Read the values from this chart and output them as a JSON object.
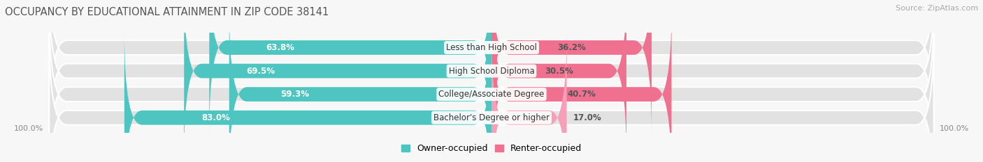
{
  "title": "OCCUPANCY BY EDUCATIONAL ATTAINMENT IN ZIP CODE 38141",
  "source": "Source: ZipAtlas.com",
  "categories": [
    "Less than High School",
    "High School Diploma",
    "College/Associate Degree",
    "Bachelor's Degree or higher"
  ],
  "owner_pct": [
    63.8,
    69.5,
    59.3,
    83.0
  ],
  "renter_pct": [
    36.2,
    30.5,
    40.7,
    17.0
  ],
  "owner_color": "#4EC5C1",
  "renter_color": "#F07090",
  "renter_color_light": "#F5A0B8",
  "bg_color": "#f7f7f7",
  "bar_bg_color": "#e2e2e2",
  "bar_height": 0.62,
  "label_color_owner": "#ffffff",
  "label_color_renter": "#555555",
  "label_outside_color": "#555555",
  "axis_label_left": "100.0%",
  "axis_label_right": "100.0%",
  "title_fontsize": 10.5,
  "source_fontsize": 8,
  "legend_fontsize": 9,
  "pct_fontsize": 8.5,
  "cat_fontsize": 8.5
}
